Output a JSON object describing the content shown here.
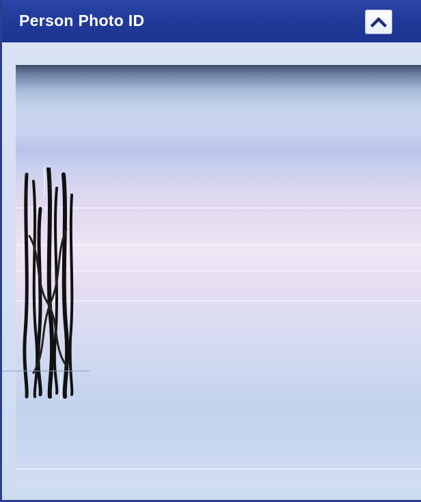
{
  "panel": {
    "title": "Person Photo ID",
    "collapse_icon": "chevron-up-icon",
    "colors": {
      "header": "#213a98",
      "title_text": "#ffffff",
      "body": "#cedcf0"
    }
  }
}
